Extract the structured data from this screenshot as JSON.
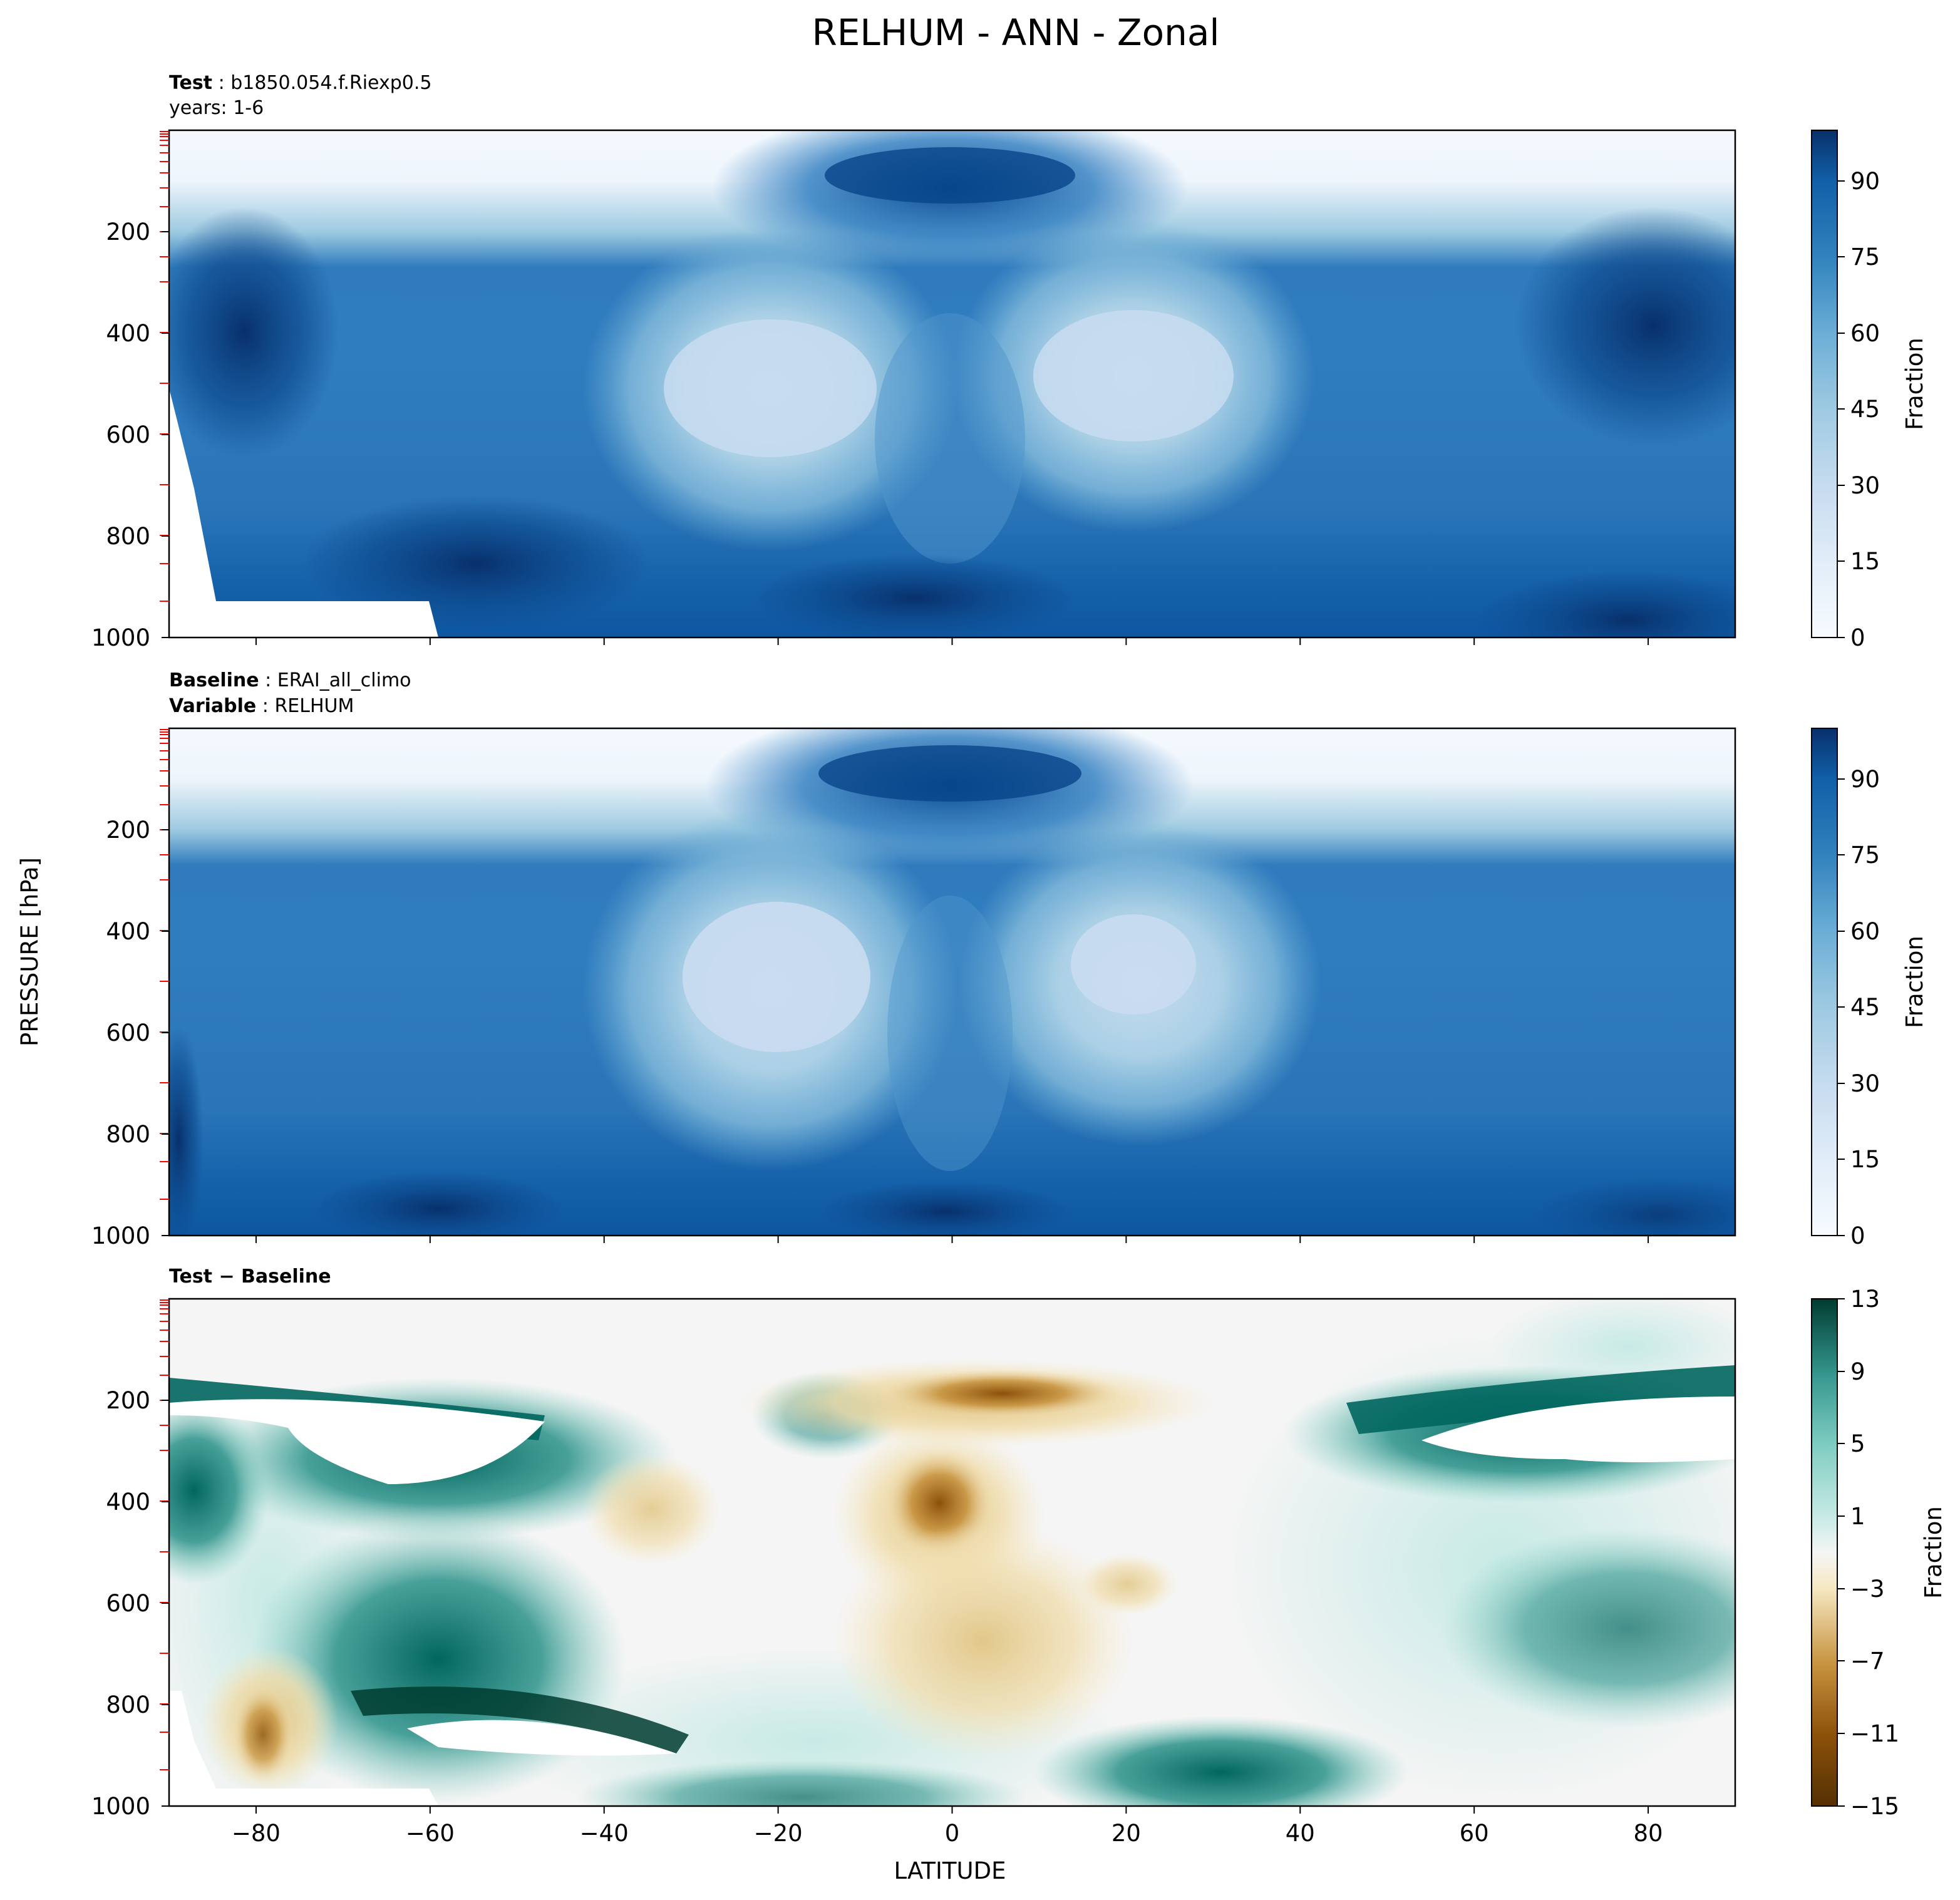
{
  "figure_title": "RELHUM - ANN - Zonal",
  "shared_axes": {
    "ylabel": "PRESSURE [hPa]",
    "xlabel": "LATITUDE"
  },
  "colors": {
    "blues_low": "#f7fbff",
    "blues_mid": "#6baed6",
    "blues_high": "#08306b",
    "diff_neg_strong": "#543005",
    "diff_neg_mid": "#c7933f",
    "diff_neg_light": "#f6e8c3",
    "diff_zero": "#f5f5f5",
    "diff_pos_light": "#c7eae5",
    "diff_pos_mid": "#5ab4ac",
    "diff_pos_strong": "#003c30",
    "tick_marks_levels": "#ff0000"
  },
  "chart_data": [
    {
      "type": "heatmap",
      "subtitle_bold": "Test",
      "subtitle": "b1850.054.f.Riexp0.5",
      "subtitle2": "years: 1-6",
      "colorbar_label": "Fraction",
      "colorbar_ticks": [
        "0",
        "15",
        "30",
        "45",
        "60",
        "75",
        "90"
      ],
      "colorbar_range": [
        0,
        100
      ],
      "x_ticks": [
        -80,
        -60,
        -40,
        -20,
        0,
        20,
        40,
        60,
        80
      ],
      "y_ticks": [
        "200",
        "400",
        "600",
        "800",
        "1000"
      ],
      "xlim": [
        -90,
        90
      ],
      "ylim": [
        1000,
        0
      ]
    },
    {
      "type": "heatmap",
      "subtitle_bold": "Baseline",
      "subtitle": "ERAI_all_climo",
      "subtitle2_bold": "Variable",
      "subtitle2": "RELHUM",
      "colorbar_label": "Fraction",
      "colorbar_ticks": [
        "0",
        "15",
        "30",
        "45",
        "60",
        "75",
        "90"
      ],
      "colorbar_range": [
        0,
        100
      ],
      "x_ticks": [
        -80,
        -60,
        -40,
        -20,
        0,
        20,
        40,
        60,
        80
      ],
      "y_ticks": [
        "200",
        "400",
        "600",
        "800",
        "1000"
      ],
      "xlim": [
        -90,
        90
      ],
      "ylim": [
        1000,
        0
      ]
    },
    {
      "type": "heatmap",
      "subtitle_bold": "Test − Baseline",
      "colorbar_label": "Fraction",
      "colorbar_ticks": [
        "13",
        "9",
        "5",
        "1",
        "−3",
        "−7",
        "−11",
        "−15"
      ],
      "colorbar_range": [
        -15,
        13
      ],
      "x_ticks": [
        -80,
        -60,
        -40,
        -20,
        0,
        20,
        40,
        60,
        80
      ],
      "x_tick_labels": [
        "−80",
        "−60",
        "−40",
        "−20",
        "0",
        "20",
        "40",
        "60",
        "80"
      ],
      "y_ticks": [
        "200",
        "400",
        "600",
        "800",
        "1000"
      ],
      "xlim": [
        -90,
        90
      ],
      "ylim": [
        1000,
        0
      ]
    }
  ]
}
